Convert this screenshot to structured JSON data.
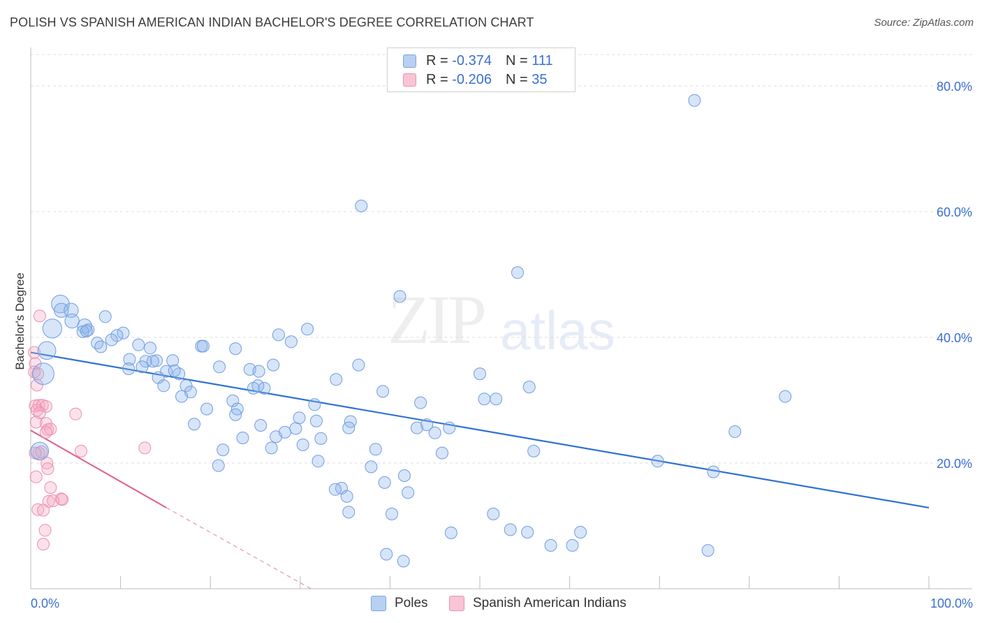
{
  "title": "POLISH VS SPANISH AMERICAN INDIAN BACHELOR'S DEGREE CORRELATION CHART",
  "source": "Source: ZipAtlas.com",
  "watermark": {
    "zip": "ZIP",
    "atlas": "atlas"
  },
  "legend": {
    "r_label": "R =",
    "n_label": "N =",
    "series": [
      {
        "name": "Poles",
        "r": "-0.374",
        "n": "111",
        "fill": "#b8d0f2",
        "stroke": "#7ba3e0"
      },
      {
        "name": "Spanish American Indians",
        "r": "-0.206",
        "n": "35",
        "fill": "#f7c5d5",
        "stroke": "#ec92b0"
      }
    ]
  },
  "colors": {
    "poles_fill": "rgba(140,180,235,0.35)",
    "poles_stroke": "#6f9de0",
    "poles_line": "#2f72d0",
    "sai_fill": "rgba(245,170,195,0.35)",
    "sai_stroke": "#eb8fb0",
    "sai_line": "#e0688f",
    "grid": "#dcdcdc",
    "axis_label": "#3a6fd0"
  },
  "chart_data": {
    "type": "scatter",
    "title": "POLISH VS SPANISH AMERICAN INDIAN BACHELOR'S DEGREE CORRELATION CHART",
    "xlabel": "",
    "ylabel": "Bachelor's Degree",
    "xlim": [
      0,
      100
    ],
    "ylim": [
      0,
      85
    ],
    "x_tick_labels": [
      {
        "value": 0,
        "label": "0.0%"
      },
      {
        "value": 100,
        "label": "100.0%"
      }
    ],
    "y_tick_labels": [
      {
        "value": 20,
        "label": "20.0%"
      },
      {
        "value": 40,
        "label": "40.0%"
      },
      {
        "value": 60,
        "label": "60.0%"
      },
      {
        "value": 80,
        "label": "80.0%"
      }
    ],
    "minor_x_ticks": [
      10,
      20,
      30,
      40,
      50,
      60,
      70,
      80,
      90,
      100
    ],
    "gridlines_y": [
      20,
      40,
      60,
      80
    ],
    "series": [
      {
        "name": "Poles",
        "trend": {
          "x0": 0,
          "y0": 37.6,
          "x1": 100,
          "y1": 12.9
        },
        "points": [
          [
            3.3,
            45.3,
            1.5
          ],
          [
            3.4,
            44.3,
            1.2
          ],
          [
            4.5,
            44.3,
            1.2
          ],
          [
            4.6,
            42.6,
            1.2
          ],
          [
            2.4,
            41.4,
            1.6
          ],
          [
            6.0,
            41.8,
            1.2
          ],
          [
            6.4,
            41.2,
            1.0
          ],
          [
            5.8,
            40.9,
            1.0
          ],
          [
            8.3,
            43.3,
            1.0
          ],
          [
            10.3,
            40.7,
            1.0
          ],
          [
            9.6,
            40.3,
            1.0
          ],
          [
            7.4,
            39.1,
            1.0
          ],
          [
            9.0,
            39.6,
            1.0
          ],
          [
            7.8,
            38.5,
            1.0
          ],
          [
            12.0,
            38.8,
            1.0
          ],
          [
            13.3,
            38.3,
            1.0
          ],
          [
            1.8,
            37.9,
            1.5
          ],
          [
            11.0,
            36.5,
            1.0
          ],
          [
            12.8,
            36.2,
            1.0
          ],
          [
            14.0,
            36.3,
            1.0
          ],
          [
            15.8,
            36.3,
            1.0
          ],
          [
            10.9,
            35.0,
            1.0
          ],
          [
            12.4,
            35.3,
            1.0
          ],
          [
            15.1,
            34.6,
            1.0
          ],
          [
            16.5,
            34.2,
            1.0
          ],
          [
            14.2,
            33.6,
            1.0
          ],
          [
            1.4,
            34.2,
            1.8
          ],
          [
            14.8,
            32.3,
            1.0
          ],
          [
            17.3,
            32.3,
            1.0
          ],
          [
            17.8,
            31.3,
            1.0
          ],
          [
            16.8,
            30.6,
            1.0
          ],
          [
            19.0,
            38.6,
            1.0
          ],
          [
            19.2,
            38.6,
            1.0
          ],
          [
            21.0,
            35.3,
            1.0
          ],
          [
            22.8,
            38.2,
            1.0
          ],
          [
            24.4,
            34.9,
            1.0
          ],
          [
            25.4,
            34.6,
            1.0
          ],
          [
            24.8,
            31.9,
            1.0
          ],
          [
            26.0,
            31.9,
            1.0
          ],
          [
            22.5,
            29.9,
            1.0
          ],
          [
            23.0,
            28.6,
            1.0
          ],
          [
            22.8,
            27.7,
            1.0
          ],
          [
            19.6,
            28.6,
            1.0
          ],
          [
            18.2,
            26.2,
            1.0
          ],
          [
            21.4,
            22.1,
            1.0
          ],
          [
            20.9,
            19.6,
            1.0
          ],
          [
            23.6,
            24.0,
            1.0
          ],
          [
            25.6,
            26.0,
            1.0
          ],
          [
            26.8,
            22.4,
            1.0
          ],
          [
            27.3,
            24.2,
            1.0
          ],
          [
            28.3,
            24.9,
            1.0
          ],
          [
            29.5,
            25.5,
            1.0
          ],
          [
            29.9,
            27.2,
            1.0
          ],
          [
            30.3,
            22.9,
            1.0
          ],
          [
            31.6,
            29.3,
            1.0
          ],
          [
            31.8,
            26.7,
            1.0
          ],
          [
            32.3,
            23.9,
            1.0
          ],
          [
            32.0,
            20.3,
            1.0
          ],
          [
            27.6,
            40.4,
            1.0
          ],
          [
            29.0,
            39.3,
            1.0
          ],
          [
            30.8,
            41.3,
            1.0
          ],
          [
            34.0,
            33.3,
            1.0
          ],
          [
            36.5,
            35.6,
            1.0
          ],
          [
            35.6,
            26.6,
            1.0
          ],
          [
            35.4,
            25.6,
            1.0
          ],
          [
            38.4,
            22.2,
            1.0
          ],
          [
            37.9,
            19.4,
            1.0
          ],
          [
            34.6,
            16.0,
            1.0
          ],
          [
            33.9,
            15.8,
            1.0
          ],
          [
            35.2,
            14.7,
            1.0
          ],
          [
            35.4,
            12.2,
            1.0
          ],
          [
            39.2,
            31.4,
            1.0
          ],
          [
            39.4,
            16.9,
            1.0
          ],
          [
            40.2,
            11.9,
            1.0
          ],
          [
            41.1,
            46.5,
            1.0
          ],
          [
            41.6,
            18.0,
            1.0
          ],
          [
            42.0,
            15.3,
            1.0
          ],
          [
            43.4,
            29.6,
            1.0
          ],
          [
            43.0,
            25.6,
            1.0
          ],
          [
            44.1,
            26.1,
            1.0
          ],
          [
            45.0,
            24.8,
            1.0
          ],
          [
            45.8,
            21.6,
            1.0
          ],
          [
            46.6,
            25.6,
            1.0
          ],
          [
            46.8,
            8.9,
            1.0
          ],
          [
            41.5,
            4.4,
            1.0
          ],
          [
            39.6,
            5.5,
            1.0
          ],
          [
            50.0,
            34.2,
            1.0
          ],
          [
            50.5,
            30.2,
            1.0
          ],
          [
            51.8,
            30.2,
            1.0
          ],
          [
            51.5,
            11.9,
            1.0
          ],
          [
            53.4,
            9.4,
            1.0
          ],
          [
            55.3,
            9.0,
            1.0
          ],
          [
            55.5,
            32.1,
            1.0
          ],
          [
            56.0,
            21.9,
            1.0
          ],
          [
            54.2,
            50.3,
            1.0
          ],
          [
            57.9,
            6.9,
            1.0
          ],
          [
            60.3,
            6.9,
            1.0
          ],
          [
            61.2,
            9.0,
            1.0
          ],
          [
            69.8,
            20.3,
            1.0
          ],
          [
            73.9,
            77.7,
            1.0
          ],
          [
            76.0,
            18.6,
            1.0
          ],
          [
            75.4,
            6.1,
            1.0
          ],
          [
            78.4,
            25.0,
            1.0
          ],
          [
            84.0,
            30.6,
            1.0
          ],
          [
            36.8,
            60.9,
            1.0
          ],
          [
            25.3,
            32.3,
            1.0
          ],
          [
            16.0,
            34.7,
            1.0
          ],
          [
            13.6,
            36.2,
            1.0
          ],
          [
            1.0,
            21.9,
            1.5
          ],
          [
            6.2,
            41.0,
            1.0
          ],
          [
            27.0,
            35.6,
            1.0
          ]
        ]
      },
      {
        "name": "Spanish American Indians",
        "trend": {
          "x0": 0,
          "y0": 25.2,
          "x1": 15.1,
          "y1": 12.9,
          "dash_x1": 31.2,
          "dash_y1": 0
        },
        "points": [
          [
            1.0,
            43.4,
            1.0
          ],
          [
            0.4,
            37.6,
            1.0
          ],
          [
            0.5,
            35.8,
            1.0
          ],
          [
            0.4,
            34.5,
            1.0
          ],
          [
            0.8,
            34.2,
            1.0
          ],
          [
            0.7,
            32.4,
            1.0
          ],
          [
            0.5,
            29.1,
            1.0
          ],
          [
            0.9,
            29.2,
            1.0
          ],
          [
            1.3,
            29.2,
            1.0
          ],
          [
            1.7,
            29.0,
            1.0
          ],
          [
            0.7,
            28.4,
            1.0
          ],
          [
            1.0,
            28.0,
            1.0
          ],
          [
            5.0,
            27.8,
            1.0
          ],
          [
            0.6,
            26.5,
            1.0
          ],
          [
            1.7,
            26.3,
            1.0
          ],
          [
            1.9,
            25.3,
            1.0
          ],
          [
            2.2,
            25.4,
            1.0
          ],
          [
            1.7,
            24.9,
            1.0
          ],
          [
            0.9,
            21.6,
            1.0
          ],
          [
            1.2,
            21.8,
            1.0
          ],
          [
            5.6,
            21.9,
            1.0
          ],
          [
            12.7,
            22.4,
            1.0
          ],
          [
            1.8,
            20.0,
            1.0
          ],
          [
            1.9,
            19.1,
            1.0
          ],
          [
            0.6,
            17.8,
            1.0
          ],
          [
            2.2,
            16.1,
            1.0
          ],
          [
            3.4,
            14.3,
            1.0
          ],
          [
            3.5,
            14.2,
            1.0
          ],
          [
            2.0,
            13.9,
            1.0
          ],
          [
            2.5,
            14.0,
            1.0
          ],
          [
            0.8,
            12.6,
            1.0
          ],
          [
            1.4,
            12.5,
            1.0
          ],
          [
            1.6,
            9.3,
            1.0
          ],
          [
            1.4,
            7.1,
            1.0
          ],
          [
            0.5,
            21.6,
            1.0
          ]
        ]
      }
    ]
  }
}
